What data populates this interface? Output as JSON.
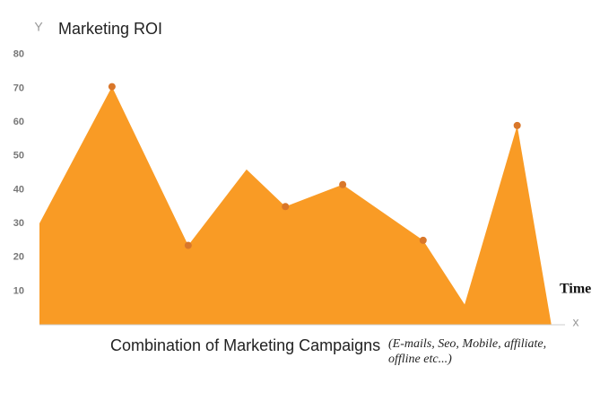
{
  "chart_data": {
    "type": "area",
    "title": "Marketing ROI",
    "y_axis_letter": "Y",
    "x_axis_letter": "x",
    "x_axis_side_label": "Time",
    "x_label": "Combination of Marketing Campaigns",
    "x_label_note": "(E-mails, Seo, Mobile, affiliate, offline etc...)",
    "x": [
      0,
      13.8,
      28.3,
      39.4,
      46.8,
      57.7,
      73.0,
      80.9,
      90.9,
      97.4
    ],
    "values": [
      30,
      70.5,
      23.5,
      46,
      35,
      41.5,
      25,
      6,
      59,
      0
    ],
    "markers": [
      false,
      true,
      true,
      false,
      true,
      true,
      true,
      false,
      true,
      false
    ],
    "color": "#f99b25",
    "marker_color": "#d9772a",
    "xlim": [
      0,
      100
    ],
    "ylim": [
      0,
      85
    ],
    "yticks": [
      10,
      20,
      30,
      40,
      50,
      60,
      70,
      80
    ]
  }
}
